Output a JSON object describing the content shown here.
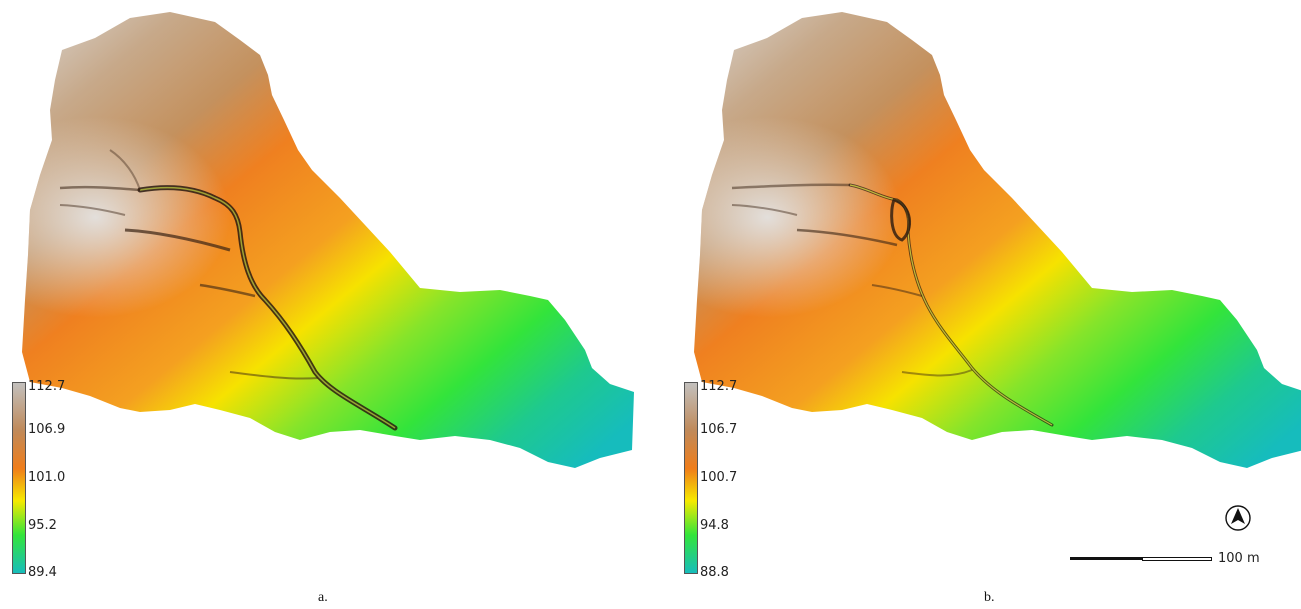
{
  "figure": {
    "panels": [
      {
        "caption": "a.",
        "legend": {
          "labels": [
            "112.7",
            "106.9",
            "101.0",
            "95.2",
            "89.4"
          ]
        }
      },
      {
        "caption": "b.",
        "legend": {
          "labels": [
            "112.7",
            "106.7",
            "100.7",
            "94.8",
            "88.8"
          ]
        }
      }
    ],
    "scalebar_label": "100 m",
    "north_label": "N",
    "colors": {
      "high": "#c2c0bd",
      "upper": "#c08a5a",
      "mid_high": "#ef7d1a",
      "mid": "#f6ea00",
      "mid_low": "#33e53a",
      "low": "#17bdbb",
      "channel": "#2a1a10"
    }
  }
}
